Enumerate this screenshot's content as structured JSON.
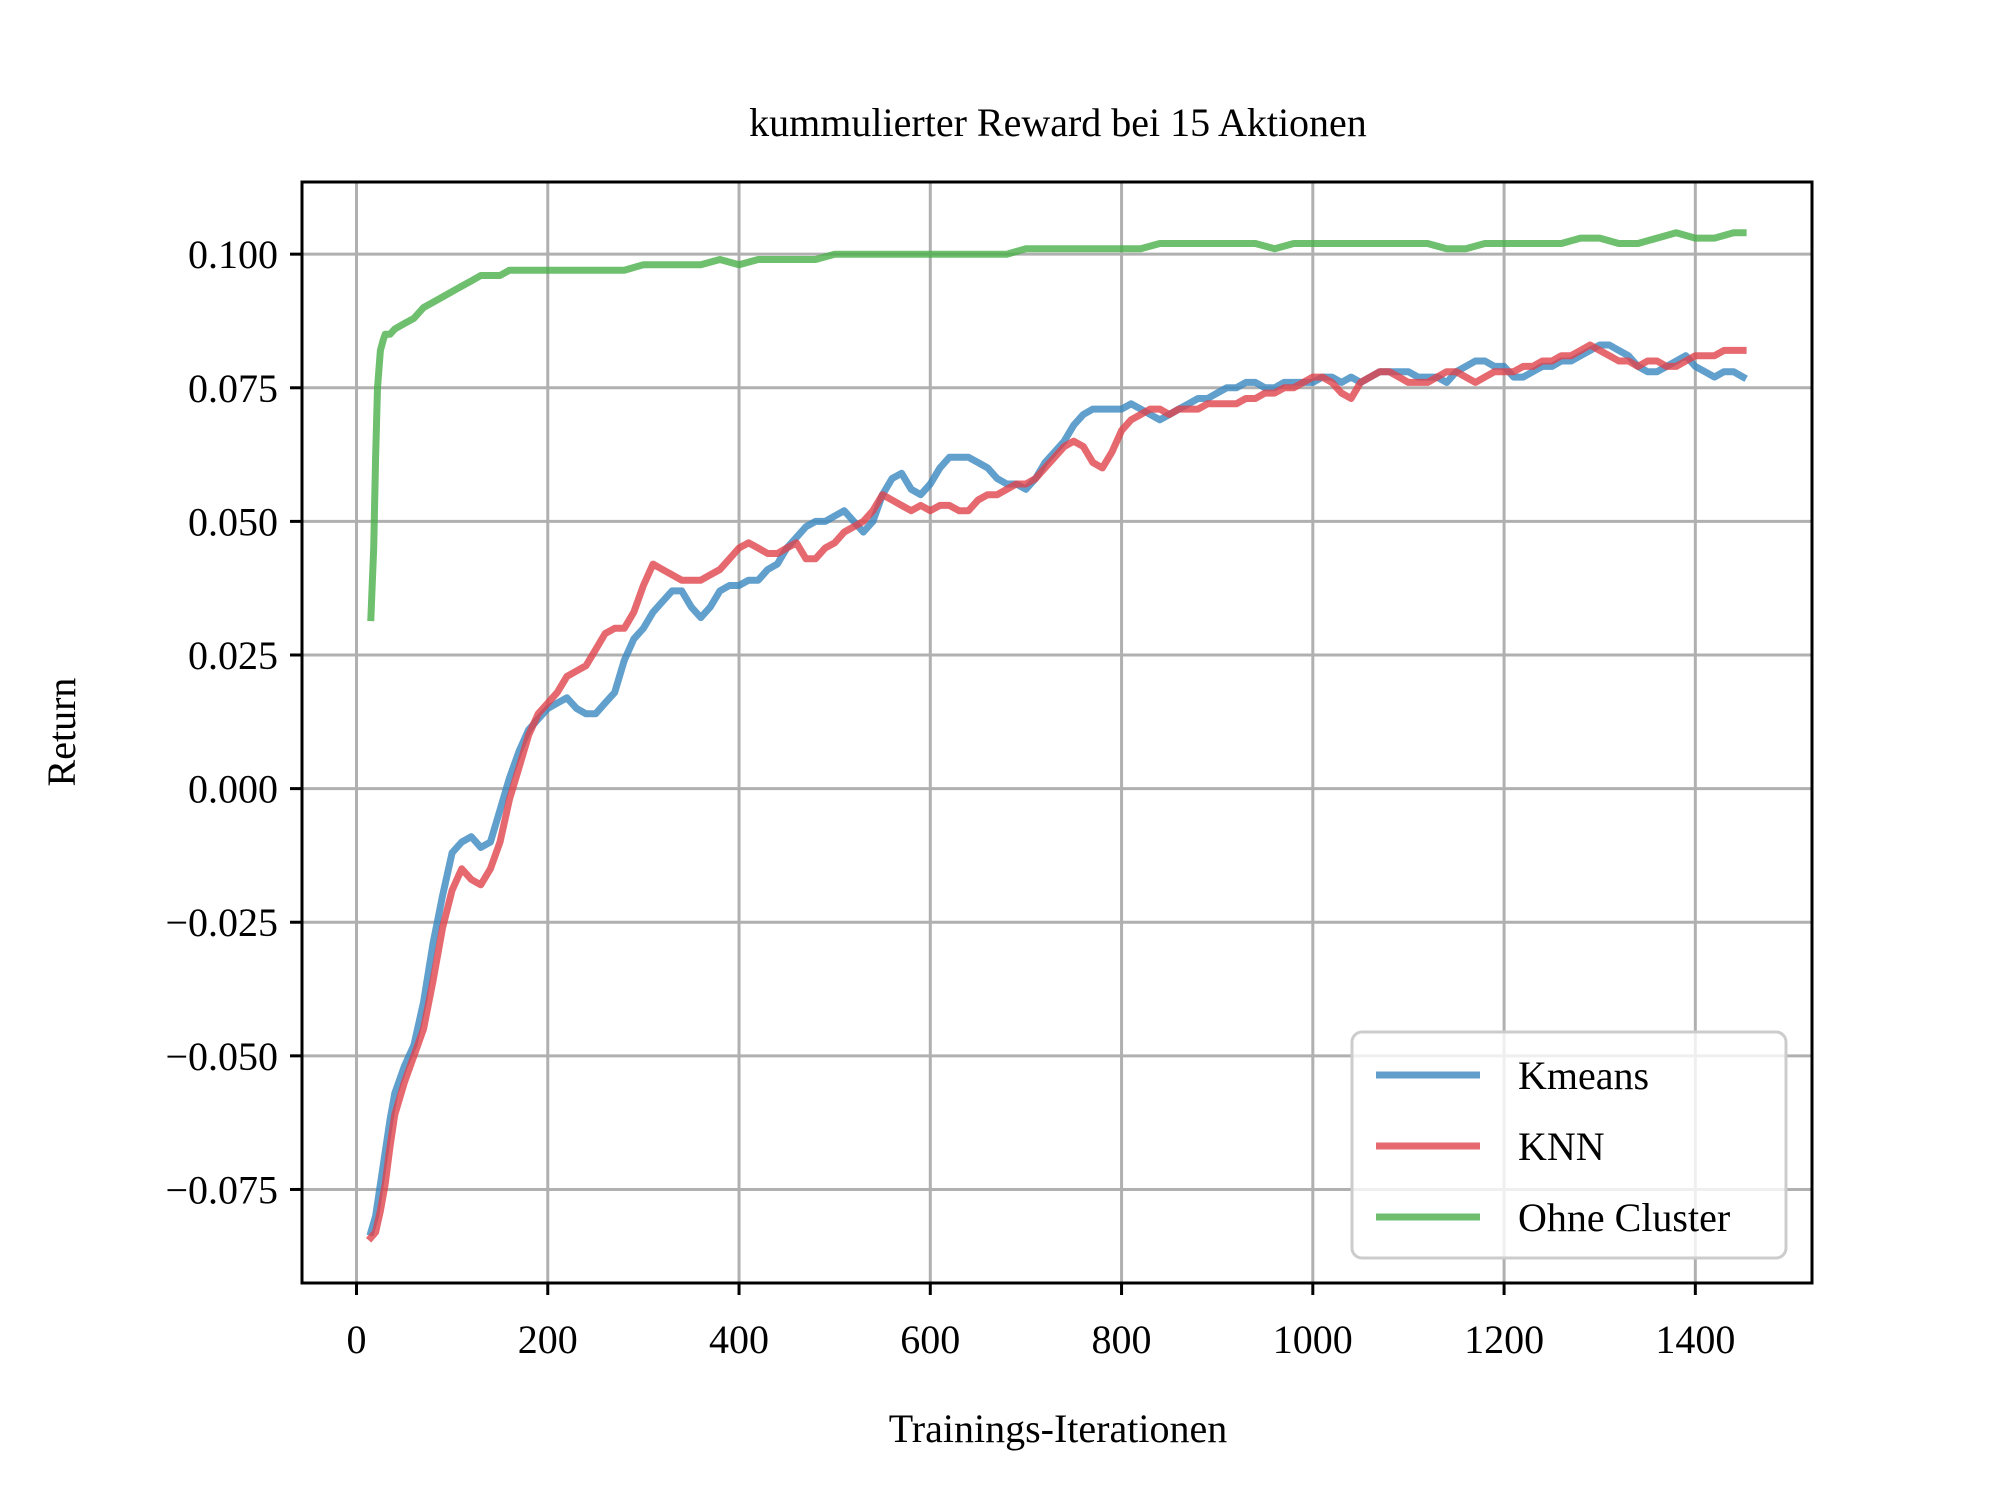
{
  "chart_data": {
    "type": "line",
    "title": "kummulierter Reward bei 15 Aktionen",
    "xlabel": "Trainings-Iterationen",
    "ylabel": "Return",
    "xlim": [
      -57,
      1522
    ],
    "ylim": [
      -0.0925,
      0.1135
    ],
    "grid": true,
    "legend_position": "lower-right",
    "x_ticks": [
      0,
      200,
      400,
      600,
      800,
      1000,
      1200,
      1400
    ],
    "x_tick_labels": [
      "0",
      "200",
      "400",
      "600",
      "800",
      "1000",
      "1200",
      "1400"
    ],
    "y_ticks": [
      -0.075,
      -0.05,
      -0.025,
      0.0,
      0.025,
      0.05,
      0.075,
      0.1
    ],
    "y_tick_labels": [
      "−0.075",
      "−0.050",
      "−0.025",
      "0.000",
      "0.025",
      "0.050",
      "0.075",
      "0.100"
    ],
    "series": [
      {
        "name": "Kmeans",
        "color": "#3a87c0",
        "x": [
          15,
          20,
          25,
          30,
          35,
          40,
          50,
          60,
          70,
          80,
          90,
          100,
          110,
          120,
          130,
          140,
          150,
          160,
          170,
          180,
          190,
          200,
          210,
          220,
          230,
          240,
          250,
          260,
          270,
          280,
          290,
          300,
          310,
          320,
          330,
          340,
          350,
          360,
          370,
          380,
          390,
          400,
          410,
          420,
          430,
          440,
          450,
          460,
          470,
          480,
          490,
          500,
          510,
          520,
          530,
          540,
          550,
          560,
          570,
          580,
          590,
          600,
          610,
          620,
          630,
          640,
          650,
          660,
          670,
          680,
          690,
          700,
          710,
          720,
          730,
          740,
          750,
          760,
          770,
          780,
          790,
          800,
          810,
          820,
          830,
          840,
          850,
          860,
          870,
          880,
          890,
          900,
          910,
          920,
          930,
          940,
          950,
          960,
          970,
          980,
          990,
          1000,
          1010,
          1020,
          1030,
          1040,
          1050,
          1060,
          1070,
          1080,
          1090,
          1100,
          1110,
          1120,
          1130,
          1140,
          1150,
          1160,
          1170,
          1180,
          1190,
          1200,
          1210,
          1220,
          1230,
          1240,
          1250,
          1260,
          1270,
          1280,
          1290,
          1300,
          1310,
          1320,
          1330,
          1340,
          1350,
          1360,
          1370,
          1380,
          1390,
          1400,
          1410,
          1420,
          1430,
          1440,
          1450
        ],
        "values": [
          -0.083,
          -0.08,
          -0.074,
          -0.068,
          -0.062,
          -0.057,
          -0.052,
          -0.048,
          -0.04,
          -0.029,
          -0.02,
          -0.012,
          -0.01,
          -0.009,
          -0.011,
          -0.01,
          -0.004,
          0.002,
          0.007,
          0.011,
          0.013,
          0.015,
          0.016,
          0.017,
          0.015,
          0.014,
          0.014,
          0.016,
          0.018,
          0.024,
          0.028,
          0.03,
          0.033,
          0.035,
          0.037,
          0.037,
          0.034,
          0.032,
          0.034,
          0.037,
          0.038,
          0.038,
          0.039,
          0.039,
          0.041,
          0.042,
          0.045,
          0.047,
          0.049,
          0.05,
          0.05,
          0.051,
          0.052,
          0.05,
          0.048,
          0.05,
          0.055,
          0.058,
          0.059,
          0.056,
          0.055,
          0.057,
          0.06,
          0.062,
          0.062,
          0.062,
          0.061,
          0.06,
          0.058,
          0.057,
          0.057,
          0.056,
          0.058,
          0.061,
          0.063,
          0.065,
          0.068,
          0.07,
          0.071,
          0.071,
          0.071,
          0.071,
          0.072,
          0.071,
          0.07,
          0.069,
          0.07,
          0.071,
          0.072,
          0.073,
          0.073,
          0.074,
          0.075,
          0.075,
          0.076,
          0.076,
          0.075,
          0.075,
          0.076,
          0.076,
          0.076,
          0.076,
          0.077,
          0.077,
          0.076,
          0.077,
          0.076,
          0.077,
          0.078,
          0.078,
          0.078,
          0.078,
          0.077,
          0.077,
          0.077,
          0.076,
          0.078,
          0.079,
          0.08,
          0.08,
          0.079,
          0.079,
          0.077,
          0.077,
          0.078,
          0.079,
          0.079,
          0.08,
          0.08,
          0.081,
          0.082,
          0.083,
          0.083,
          0.082,
          0.081,
          0.079,
          0.078,
          0.078,
          0.079,
          0.08,
          0.081,
          0.079,
          0.078,
          0.077,
          0.078,
          0.078,
          0.077
        ]
      },
      {
        "name": "KNN",
        "color": "#e0444c",
        "x": [
          15,
          20,
          25,
          30,
          35,
          40,
          50,
          60,
          70,
          80,
          90,
          100,
          110,
          120,
          130,
          140,
          150,
          160,
          170,
          180,
          190,
          200,
          210,
          220,
          230,
          240,
          250,
          260,
          270,
          280,
          290,
          300,
          310,
          320,
          330,
          340,
          350,
          360,
          370,
          380,
          390,
          400,
          410,
          420,
          430,
          440,
          450,
          460,
          470,
          480,
          490,
          500,
          510,
          520,
          530,
          540,
          550,
          560,
          570,
          580,
          590,
          600,
          610,
          620,
          630,
          640,
          650,
          660,
          670,
          680,
          690,
          700,
          710,
          720,
          730,
          740,
          750,
          760,
          770,
          780,
          790,
          800,
          810,
          820,
          830,
          840,
          850,
          860,
          870,
          880,
          890,
          900,
          910,
          920,
          930,
          940,
          950,
          960,
          970,
          980,
          990,
          1000,
          1010,
          1020,
          1030,
          1040,
          1050,
          1060,
          1070,
          1080,
          1090,
          1100,
          1110,
          1120,
          1130,
          1140,
          1150,
          1160,
          1170,
          1180,
          1190,
          1200,
          1210,
          1220,
          1230,
          1240,
          1250,
          1260,
          1270,
          1280,
          1290,
          1300,
          1310,
          1320,
          1330,
          1340,
          1350,
          1360,
          1370,
          1380,
          1390,
          1400,
          1410,
          1420,
          1430,
          1440,
          1450
        ],
        "values": [
          -0.084,
          -0.083,
          -0.079,
          -0.074,
          -0.067,
          -0.061,
          -0.055,
          -0.05,
          -0.045,
          -0.036,
          -0.026,
          -0.019,
          -0.015,
          -0.017,
          -0.018,
          -0.015,
          -0.01,
          -0.002,
          0.004,
          0.01,
          0.014,
          0.016,
          0.018,
          0.021,
          0.022,
          0.023,
          0.026,
          0.029,
          0.03,
          0.03,
          0.033,
          0.038,
          0.042,
          0.041,
          0.04,
          0.039,
          0.039,
          0.039,
          0.04,
          0.041,
          0.043,
          0.045,
          0.046,
          0.045,
          0.044,
          0.044,
          0.045,
          0.046,
          0.043,
          0.043,
          0.045,
          0.046,
          0.048,
          0.049,
          0.05,
          0.052,
          0.055,
          0.054,
          0.053,
          0.052,
          0.053,
          0.052,
          0.053,
          0.053,
          0.052,
          0.052,
          0.054,
          0.055,
          0.055,
          0.056,
          0.057,
          0.057,
          0.058,
          0.06,
          0.062,
          0.064,
          0.065,
          0.064,
          0.061,
          0.06,
          0.063,
          0.067,
          0.069,
          0.07,
          0.071,
          0.071,
          0.07,
          0.071,
          0.071,
          0.071,
          0.072,
          0.072,
          0.072,
          0.072,
          0.073,
          0.073,
          0.074,
          0.074,
          0.075,
          0.075,
          0.076,
          0.077,
          0.077,
          0.076,
          0.074,
          0.073,
          0.076,
          0.077,
          0.078,
          0.078,
          0.077,
          0.076,
          0.076,
          0.076,
          0.077,
          0.078,
          0.078,
          0.077,
          0.076,
          0.077,
          0.078,
          0.078,
          0.078,
          0.079,
          0.079,
          0.08,
          0.08,
          0.081,
          0.081,
          0.082,
          0.083,
          0.082,
          0.081,
          0.08,
          0.08,
          0.079,
          0.08,
          0.08,
          0.079,
          0.079,
          0.08,
          0.081,
          0.081,
          0.081,
          0.082,
          0.082,
          0.082
        ]
      },
      {
        "name": "Ohne Cluster",
        "color": "#4aaf4a",
        "x": [
          15,
          18,
          20,
          22,
          25,
          28,
          30,
          35,
          40,
          50,
          60,
          70,
          80,
          90,
          100,
          110,
          120,
          130,
          140,
          150,
          160,
          170,
          180,
          190,
          200,
          220,
          240,
          260,
          280,
          300,
          320,
          340,
          360,
          380,
          400,
          420,
          440,
          460,
          480,
          500,
          520,
          540,
          560,
          580,
          600,
          620,
          640,
          660,
          680,
          700,
          720,
          740,
          760,
          780,
          800,
          820,
          840,
          860,
          880,
          900,
          920,
          940,
          960,
          980,
          1000,
          1020,
          1040,
          1060,
          1080,
          1100,
          1120,
          1140,
          1160,
          1180,
          1200,
          1220,
          1240,
          1260,
          1280,
          1300,
          1320,
          1340,
          1360,
          1380,
          1400,
          1420,
          1440,
          1450
        ],
        "values": [
          0.032,
          0.045,
          0.062,
          0.075,
          0.082,
          0.084,
          0.085,
          0.085,
          0.086,
          0.087,
          0.088,
          0.09,
          0.091,
          0.092,
          0.093,
          0.094,
          0.095,
          0.096,
          0.096,
          0.096,
          0.097,
          0.097,
          0.097,
          0.097,
          0.097,
          0.097,
          0.097,
          0.097,
          0.097,
          0.098,
          0.098,
          0.098,
          0.098,
          0.099,
          0.098,
          0.099,
          0.099,
          0.099,
          0.099,
          0.1,
          0.1,
          0.1,
          0.1,
          0.1,
          0.1,
          0.1,
          0.1,
          0.1,
          0.1,
          0.101,
          0.101,
          0.101,
          0.101,
          0.101,
          0.101,
          0.101,
          0.102,
          0.102,
          0.102,
          0.102,
          0.102,
          0.102,
          0.101,
          0.102,
          0.102,
          0.102,
          0.102,
          0.102,
          0.102,
          0.102,
          0.102,
          0.101,
          0.101,
          0.102,
          0.102,
          0.102,
          0.102,
          0.102,
          0.103,
          0.103,
          0.102,
          0.102,
          0.103,
          0.104,
          0.103,
          0.103,
          0.104,
          0.104
        ]
      }
    ]
  }
}
